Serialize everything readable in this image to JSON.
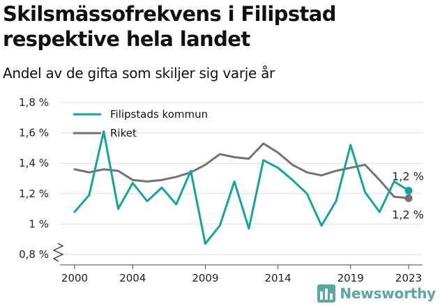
{
  "title": "Skilsmässofrekvens i Filipstad\nrespektive hela landet",
  "subtitle": "Andel av de gifta som skiljer sig varje år",
  "brand": {
    "name": "Newsworthy",
    "color": "#5aa6a3",
    "icon": "bar-chart-logo-icon"
  },
  "colors": {
    "filipstad": "#14a49a",
    "riket": "#727276",
    "grid": "#dddddd"
  },
  "chart_data": {
    "type": "line",
    "title": "Skilsmässofrekvens i Filipstad respektive hela landet",
    "subtitle": "Andel av de gifta som skiljer sig varje år",
    "x": [
      2000,
      2001,
      2002,
      2003,
      2004,
      2005,
      2006,
      2007,
      2008,
      2009,
      2010,
      2011,
      2012,
      2013,
      2014,
      2015,
      2016,
      2017,
      2018,
      2019,
      2020,
      2021,
      2022,
      2023
    ],
    "series": [
      {
        "name": "Filipstads kommun",
        "values": [
          1.08,
          1.19,
          1.61,
          1.1,
          1.27,
          1.15,
          1.24,
          1.13,
          1.35,
          0.87,
          0.99,
          1.28,
          0.97,
          1.42,
          1.37,
          1.29,
          1.2,
          0.99,
          1.15,
          1.52,
          1.21,
          1.08,
          1.28,
          1.22
        ]
      },
      {
        "name": "Riket",
        "values": [
          1.36,
          1.34,
          1.36,
          1.35,
          1.29,
          1.28,
          1.29,
          1.31,
          1.34,
          1.39,
          1.46,
          1.44,
          1.43,
          1.53,
          1.47,
          1.39,
          1.34,
          1.32,
          1.35,
          1.37,
          1.39,
          1.29,
          1.18,
          1.17
        ]
      }
    ],
    "end_labels": [
      "1,2 %",
      "1,2 %"
    ],
    "y_ticks": [
      0.8,
      1.0,
      1.2,
      1.4,
      1.6,
      1.8
    ],
    "y_tick_labels": [
      "0,8 %",
      "1 %",
      "1,2 %",
      "1,4 %",
      "1,6 %",
      "1,8 %"
    ],
    "x_ticks": [
      2000,
      2004,
      2009,
      2014,
      2019,
      2023
    ],
    "x_tick_labels": [
      "2000",
      "2004",
      "2009",
      "2014",
      "2019",
      "2023"
    ],
    "ylim": [
      0.8,
      1.8
    ],
    "xlim": [
      2000,
      2023
    ],
    "axis_break": true,
    "grid": true,
    "legend_position": "top-left"
  }
}
